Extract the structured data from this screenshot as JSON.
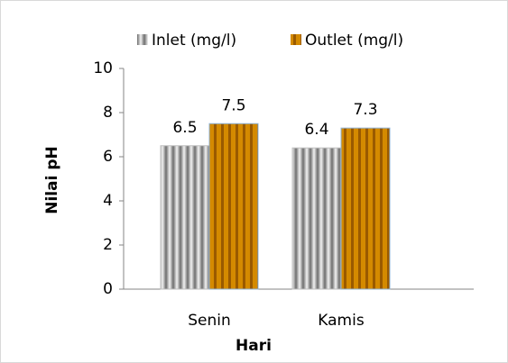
{
  "chart_data": {
    "type": "bar",
    "categories": [
      "Senin",
      "Kamis"
    ],
    "series": [
      {
        "name": "Inlet (mg/l)",
        "color": "#a6a6a6",
        "values": [
          6.5,
          6.4
        ]
      },
      {
        "name": "Outlet (mg/l)",
        "color": "#d48a00",
        "values": [
          7.5,
          7.3
        ]
      }
    ],
    "xlabel": "Hari",
    "ylabel": "Nilai pH",
    "ylim": [
      0,
      10
    ],
    "yticks": [
      0,
      2,
      4,
      6,
      8,
      10
    ],
    "grid": false,
    "legend": "top"
  }
}
